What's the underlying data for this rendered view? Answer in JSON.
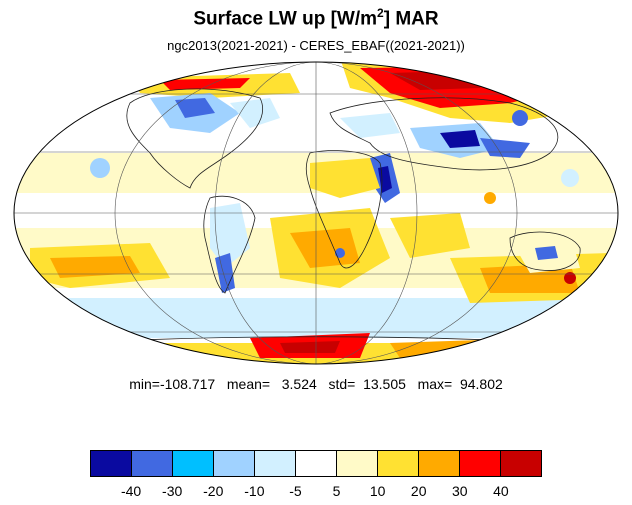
{
  "header": {
    "title_prefix": "Surface LW up [W/m",
    "title_sup": "2",
    "title_suffix": "]  MAR",
    "subtitle": "ngc2013(2021-2021) - CERES_EBAF((2021-2021))"
  },
  "stats": {
    "text": "min=-108.717   mean=   3.524   std=  13.505   max=  94.802"
  },
  "colorbar": {
    "colors": [
      "#0a0aa0",
      "#4169e1",
      "#00bfff",
      "#a0d2ff",
      "#d2f0ff",
      "#ffffff",
      "#fffac8",
      "#ffe132",
      "#ffaa00",
      "#ff0000",
      "#c80000"
    ],
    "tick_labels": [
      "-40",
      "-30",
      "-20",
      "-10",
      "-5",
      "5",
      "10",
      "20",
      "30",
      "40"
    ]
  }
}
